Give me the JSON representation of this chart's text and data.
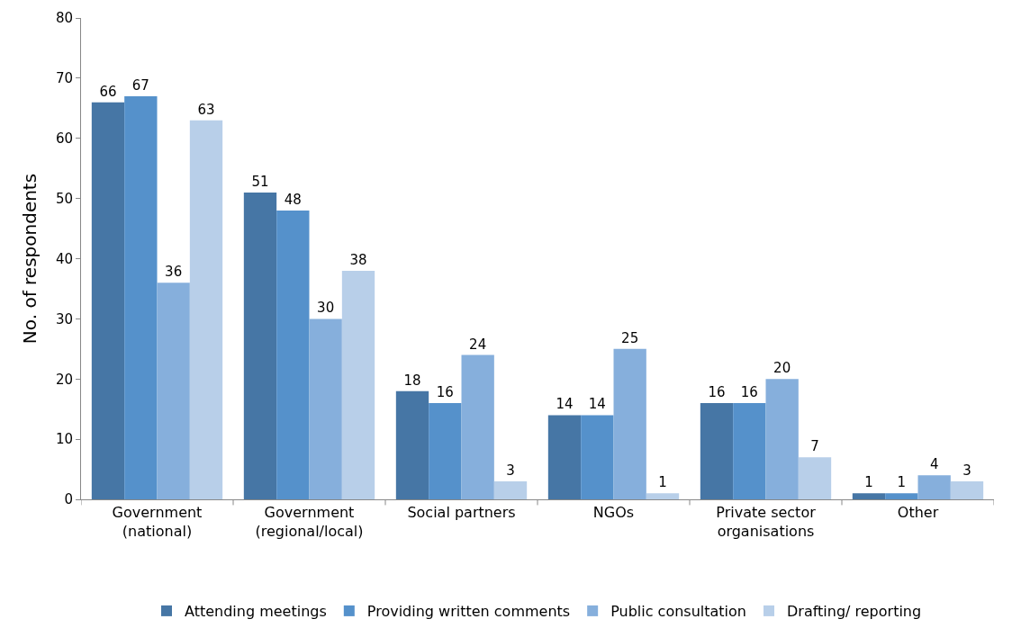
{
  "chart_data": {
    "type": "bar",
    "ylabel": "No. of respondents",
    "categories": [
      "Government\n(national)",
      "Government\n(regional/local)",
      "Social partners",
      "NGOs",
      "Private sector\norganisations",
      "Other"
    ],
    "series": [
      {
        "name": "Attending meetings",
        "color": "#4676a5",
        "values": [
          66,
          51,
          18,
          14,
          16,
          1
        ]
      },
      {
        "name": "Providing written comments",
        "color": "#5591cb",
        "values": [
          67,
          48,
          16,
          14,
          16,
          1
        ]
      },
      {
        "name": "Public consultation",
        "color": "#86afdc",
        "values": [
          36,
          30,
          24,
          25,
          20,
          4
        ]
      },
      {
        "name": "Drafting/ reporting",
        "color": "#b8cfe9",
        "values": [
          63,
          38,
          3,
          1,
          7,
          3
        ]
      }
    ],
    "ylim": [
      0,
      80
    ],
    "yticks": [
      0,
      10,
      20,
      30,
      40,
      50,
      60,
      70,
      80
    ],
    "legend": "bottom",
    "data_labels": true
  }
}
